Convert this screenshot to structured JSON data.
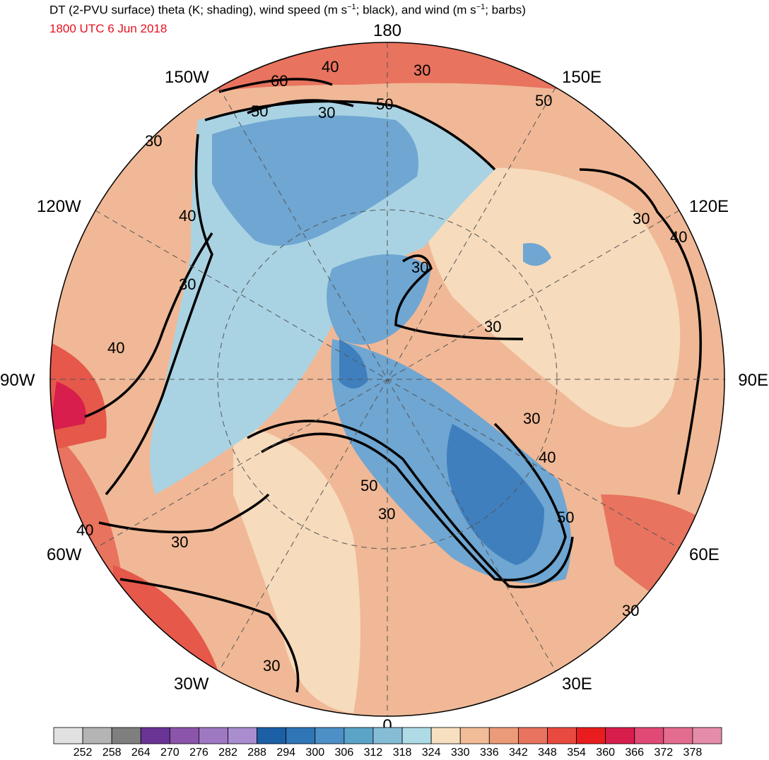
{
  "header": {
    "title_main": "DT (2-PVU surface) theta (K; shading), wind speed (m s",
    "title_sup1": "−1",
    "title_mid": "; black), and wind (m s",
    "title_sup2": "−1",
    "title_end": "; barbs)",
    "valid_time": "1800 UTC 6 Jun 2018"
  },
  "longitude_labels": {
    "top": "180",
    "bottom": "0",
    "left": "90W",
    "right": "90E",
    "w150": "150W",
    "e150": "150E",
    "w120": "120W",
    "e120": "120E",
    "w60": "60W",
    "e60": "60E",
    "w30": "30W",
    "e30": "30E"
  },
  "contour_labels": {
    "c1": "40",
    "c2": "30",
    "c3": "60",
    "c4": "50",
    "c5": "30",
    "c6": "50",
    "c7": "50",
    "c8": "30",
    "c9": "40",
    "c10": "30",
    "c11": "30",
    "c12": "40",
    "c13": "30",
    "c14": "30",
    "c15": "30",
    "c16": "40",
    "c17": "50",
    "c18": "30",
    "c19": "40",
    "c20": "30",
    "c21": "50",
    "c22": "30",
    "c23": "30",
    "c24": "40",
    "c25": "30"
  },
  "colorbar": {
    "colors": [
      "#e1e1e1",
      "#b4b4b4",
      "#7f7f7f",
      "#6a3396",
      "#8a55ab",
      "#9e78c3",
      "#a98dcf",
      "#1b5fa6",
      "#2f76b7",
      "#4d8fc7",
      "#5aa4c8",
      "#86bdd6",
      "#aedbe6",
      "#f7e0c1",
      "#f2bc98",
      "#ec9b78",
      "#e8735e",
      "#e94a3f",
      "#e91d1d",
      "#d81e4c",
      "#e04a74",
      "#e46c8f",
      "#e68cab"
    ],
    "tick_labels": [
      "252",
      "258",
      "264",
      "270",
      "276",
      "282",
      "288",
      "294",
      "300",
      "306",
      "312",
      "318",
      "324",
      "330",
      "336",
      "342",
      "348",
      "354",
      "360",
      "366",
      "372",
      "378"
    ]
  },
  "colors": {
    "cold": "#6fa6d2",
    "cold_core": "#3f7fbe",
    "cool": "#a9d3e3",
    "warm_light": "#f6dbbc",
    "warm": "#efae8a",
    "hot": "#e56550",
    "hottest": "#dd3c3e",
    "contour": "#000000",
    "barbs": "#3a3a3a"
  }
}
